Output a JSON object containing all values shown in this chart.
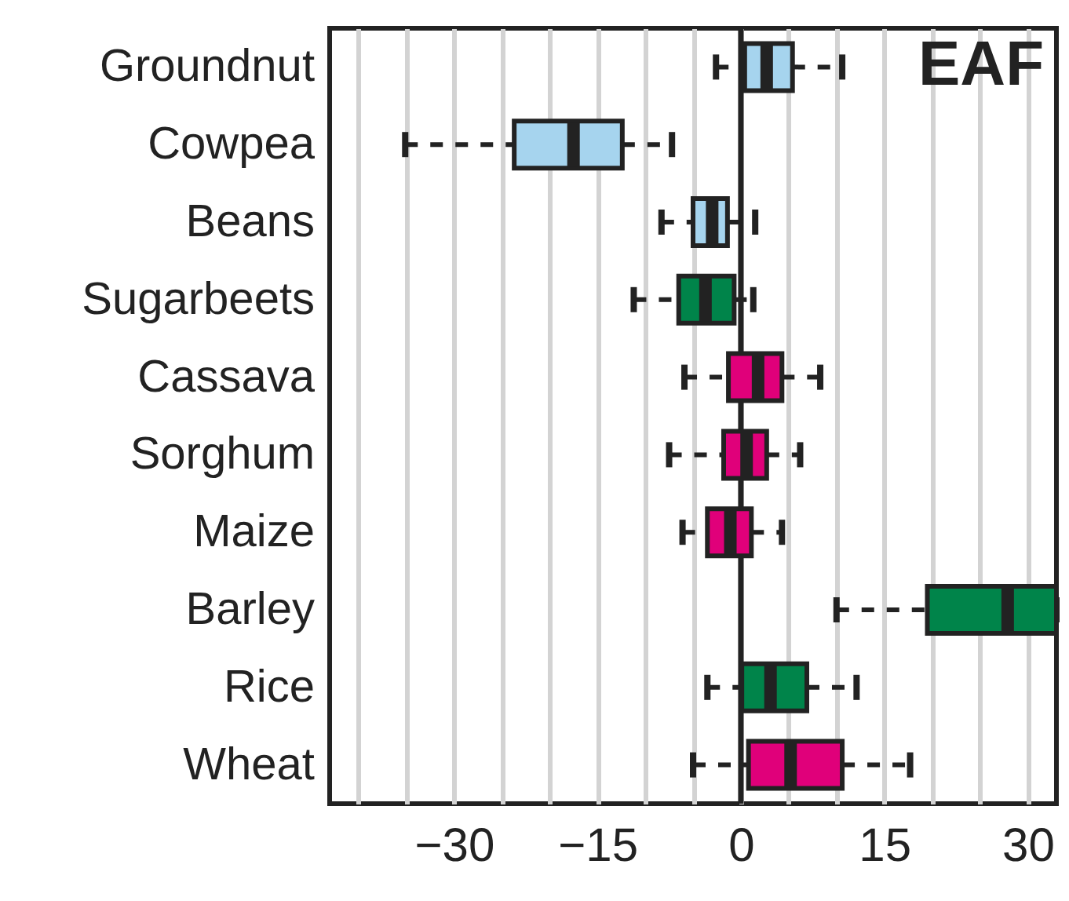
{
  "chart_data": {
    "type": "box",
    "orientation": "horizontal",
    "categories": [
      "Groundnut",
      "Cowpea",
      "Beans",
      "Sugarbeets",
      "Cassava",
      "Sorghum",
      "Maize",
      "Barley",
      "Rice",
      "Wheat"
    ],
    "boxes": [
      {
        "low": -2.6,
        "q1": 0.4,
        "median": 2.7,
        "q3": 5.4,
        "high": 10.6
      },
      {
        "low": -35.1,
        "q1": -23.7,
        "median": -17.5,
        "q3": -12.4,
        "high": -7.2
      },
      {
        "low": -8.3,
        "q1": -5.0,
        "median": -3.0,
        "q3": -1.4,
        "high": 1.5
      },
      {
        "low": -11.2,
        "q1": -6.5,
        "median": -3.7,
        "q3": -0.7,
        "high": 1.3
      },
      {
        "low": -5.9,
        "q1": -1.3,
        "median": 1.8,
        "q3": 4.3,
        "high": 8.3
      },
      {
        "low": -7.5,
        "q1": -1.8,
        "median": 0.6,
        "q3": 2.7,
        "high": 6.2
      },
      {
        "low": -6.1,
        "q1": -3.5,
        "median": -1.1,
        "q3": 1.1,
        "high": 4.3
      },
      {
        "low": 10.0,
        "q1": 19.5,
        "median": 27.9,
        "q3": 33,
        "high": 33
      },
      {
        "low": -3.5,
        "q1": 0.1,
        "median": 3.1,
        "q3": 6.9,
        "high": 12.1
      },
      {
        "low": -5.0,
        "q1": 0.8,
        "median": 5.2,
        "q3": 10.6,
        "high": 17.7
      }
    ],
    "colors": [
      "#a6d4ee",
      "#a6d4ee",
      "#a6d4ee",
      "#00844a",
      "#e0007a",
      "#e0007a",
      "#e0007a",
      "#00844a",
      "#00844a",
      "#e0007a"
    ],
    "xlim": [
      -43,
      33
    ],
    "xticks": [
      {
        "value": -40,
        "label": null
      },
      {
        "value": -35,
        "label": null
      },
      -30,
      {
        "value": -25,
        "label": null
      },
      {
        "value": -20,
        "label": null
      },
      -15,
      {
        "value": -10,
        "label": null
      },
      {
        "value": -5,
        "label": null
      },
      0,
      {
        "value": 5,
        "label": null
      },
      {
        "value": 10,
        "label": null
      },
      15,
      {
        "value": 20,
        "label": null
      },
      {
        "value": 25,
        "label": null
      },
      30
    ],
    "grid": true,
    "line_style": "dashed",
    "ref_lines": [
      {
        "axis": "x",
        "value": 0
      }
    ],
    "annotations": [
      "EAF"
    ]
  }
}
